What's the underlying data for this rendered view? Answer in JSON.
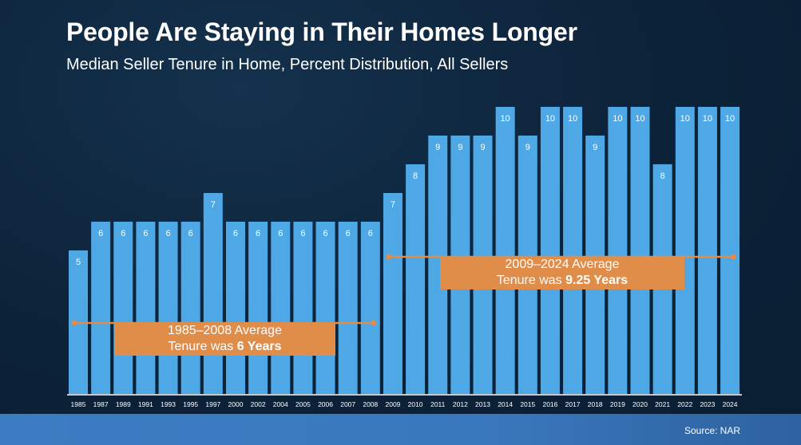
{
  "title": "People Are Staying in Their Homes Longer",
  "subtitle": "Median Seller Tenure in Home, Percent Distribution, All Sellers",
  "source": "Source: NAR",
  "colors": {
    "bar": "#4ea8e6",
    "annotation": "#e08d4a",
    "background": "#0c2238"
  },
  "chart_data": {
    "type": "bar",
    "title": "People Are Staying in Their Homes Longer",
    "categories": [
      "1985",
      "1987",
      "1989",
      "1991",
      "1993",
      "1995",
      "1997",
      "2000",
      "2002",
      "2004",
      "2005",
      "2006",
      "2007",
      "2008",
      "2009",
      "2010",
      "2011",
      "2012",
      "2013",
      "2014",
      "2015",
      "2016",
      "2017",
      "2018",
      "2019",
      "2020",
      "2021",
      "2022",
      "2023",
      "2024"
    ],
    "values": [
      5,
      6,
      6,
      6,
      6,
      6,
      7,
      6,
      6,
      6,
      6,
      6,
      6,
      6,
      7,
      8,
      9,
      9,
      9,
      10,
      9,
      10,
      10,
      9,
      10,
      10,
      8,
      10,
      10,
      10
    ],
    "ylim": [
      0,
      10
    ],
    "xlabel": "",
    "ylabel": "",
    "annotations": [
      {
        "range": [
          "1985",
          "2008"
        ],
        "value": 6,
        "line1": "1985–2008 Average",
        "line2_prefix": "Tenure was ",
        "line2_bold": "6 Years"
      },
      {
        "range": [
          "2009",
          "2024"
        ],
        "value": 9.25,
        "line1": "2009–2024 Average",
        "line2_prefix": "Tenure was ",
        "line2_bold": "9.25 Years"
      }
    ]
  }
}
